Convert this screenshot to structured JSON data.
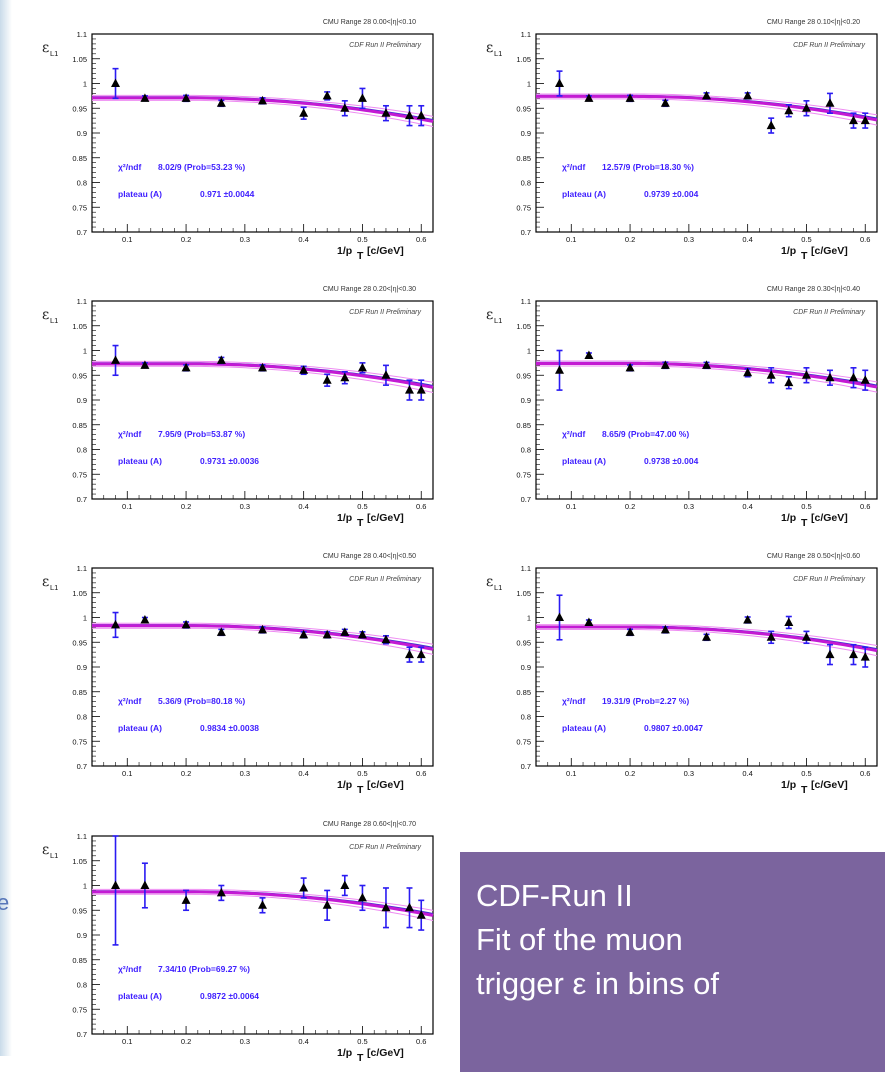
{
  "common": {
    "y_symbol": "ε",
    "y_sub": "L1",
    "preliminary": "CDF Run II Preliminary",
    "xlabel_main": "1/p",
    "xlabel_sub": "T",
    "xlabel_unit": "[c/GeV]",
    "y_ticks": [
      "0.7",
      "0.75",
      "0.8",
      "0.85",
      "0.9",
      "0.95",
      "1",
      "1.05",
      "1.1"
    ],
    "x_ticks": [
      "0.1",
      "0.2",
      "0.3",
      "0.4",
      "0.5",
      "0.6"
    ],
    "plateau_label": "plateau (A)",
    "chi_label": "χ²/ndf",
    "colors": {
      "fit": "#c31ad3",
      "fit_band": "#3b2fd1",
      "error": "#2a1bf2",
      "text": "#3d1dff",
      "marker": "#000000"
    }
  },
  "chart_data": [
    {
      "type": "scatter",
      "title": "CMU Range 28   0.00<|η|<0.10",
      "chi2": "8.02/9 (Prob=53.23 %)",
      "plateau": "0.971 ±0.0044",
      "xlim": [
        0.04,
        0.62
      ],
      "ylim": [
        0.7,
        1.1
      ],
      "x": [
        0.08,
        0.13,
        0.2,
        0.26,
        0.33,
        0.4,
        0.44,
        0.47,
        0.5,
        0.54,
        0.58,
        0.6
      ],
      "y": [
        1.0,
        0.97,
        0.97,
        0.96,
        0.965,
        0.94,
        0.975,
        0.95,
        0.97,
        0.94,
        0.935,
        0.935
      ],
      "err": [
        0.03,
        0.005,
        0.006,
        0.006,
        0.006,
        0.012,
        0.008,
        0.015,
        0.02,
        0.015,
        0.02,
        0.02
      ],
      "fit": {
        "A": 0.971
      }
    },
    {
      "type": "scatter",
      "title": "CMU Range 28   0.10<|η|<0.20",
      "chi2": "12.57/9 (Prob=18.30 %)",
      "plateau": "0.9739 ±0.004",
      "xlim": [
        0.04,
        0.62
      ],
      "ylim": [
        0.7,
        1.1
      ],
      "x": [
        0.08,
        0.13,
        0.2,
        0.26,
        0.33,
        0.4,
        0.44,
        0.47,
        0.5,
        0.54,
        0.58,
        0.6
      ],
      "y": [
        1.0,
        0.97,
        0.97,
        0.96,
        0.975,
        0.975,
        0.915,
        0.945,
        0.95,
        0.96,
        0.925,
        0.925
      ],
      "err": [
        0.025,
        0.005,
        0.006,
        0.006,
        0.006,
        0.006,
        0.015,
        0.012,
        0.015,
        0.02,
        0.015,
        0.015
      ],
      "fit": {
        "A": 0.9739
      }
    },
    {
      "type": "scatter",
      "title": "CMU Range 28   0.20<|η|<0.30",
      "chi2": "7.95/9 (Prob=53.87 %)",
      "plateau": "0.9731 ±0.0036",
      "xlim": [
        0.04,
        0.62
      ],
      "ylim": [
        0.7,
        1.1
      ],
      "x": [
        0.08,
        0.13,
        0.2,
        0.26,
        0.33,
        0.4,
        0.44,
        0.47,
        0.5,
        0.54,
        0.58,
        0.6
      ],
      "y": [
        0.98,
        0.97,
        0.965,
        0.98,
        0.965,
        0.96,
        0.94,
        0.945,
        0.965,
        0.95,
        0.92,
        0.92
      ],
      "err": [
        0.03,
        0.005,
        0.006,
        0.006,
        0.006,
        0.008,
        0.012,
        0.012,
        0.01,
        0.02,
        0.02,
        0.02
      ],
      "fit": {
        "A": 0.9731
      }
    },
    {
      "type": "scatter",
      "title": "CMU Range 28   0.30<|η|<0.40",
      "chi2": "8.65/9 (Prob=47.00 %)",
      "plateau": "0.9738 ±0.004",
      "xlim": [
        0.04,
        0.62
      ],
      "ylim": [
        0.7,
        1.1
      ],
      "x": [
        0.08,
        0.13,
        0.2,
        0.26,
        0.33,
        0.4,
        0.44,
        0.47,
        0.5,
        0.54,
        0.58,
        0.6
      ],
      "y": [
        0.96,
        0.99,
        0.965,
        0.97,
        0.97,
        0.955,
        0.95,
        0.935,
        0.95,
        0.945,
        0.945,
        0.94
      ],
      "err": [
        0.04,
        0.005,
        0.006,
        0.006,
        0.006,
        0.008,
        0.015,
        0.012,
        0.015,
        0.015,
        0.02,
        0.02
      ],
      "fit": {
        "A": 0.9738
      }
    },
    {
      "type": "scatter",
      "title": "CMU Range 28   0.40<|η|<0.50",
      "chi2": "5.36/9 (Prob=80.18 %)",
      "plateau": "0.9834 ±0.0038",
      "xlim": [
        0.04,
        0.62
      ],
      "ylim": [
        0.7,
        1.1
      ],
      "x": [
        0.08,
        0.13,
        0.2,
        0.26,
        0.33,
        0.4,
        0.44,
        0.47,
        0.5,
        0.54,
        0.58,
        0.6
      ],
      "y": [
        0.985,
        0.995,
        0.985,
        0.97,
        0.975,
        0.965,
        0.965,
        0.97,
        0.965,
        0.955,
        0.925,
        0.925
      ],
      "err": [
        0.025,
        0.005,
        0.006,
        0.006,
        0.006,
        0.006,
        0.006,
        0.006,
        0.006,
        0.008,
        0.015,
        0.015
      ],
      "fit": {
        "A": 0.9834
      }
    },
    {
      "type": "scatter",
      "title": "CMU Range 28   0.50<|η|<0.60",
      "chi2": "19.31/9 (Prob=2.27 %)",
      "plateau": "0.9807 ±0.0047",
      "xlim": [
        0.04,
        0.62
      ],
      "ylim": [
        0.7,
        1.1
      ],
      "x": [
        0.08,
        0.13,
        0.2,
        0.26,
        0.33,
        0.4,
        0.44,
        0.47,
        0.5,
        0.54,
        0.58,
        0.6
      ],
      "y": [
        1.0,
        0.99,
        0.97,
        0.975,
        0.96,
        0.995,
        0.96,
        0.99,
        0.96,
        0.925,
        0.925,
        0.92
      ],
      "err": [
        0.045,
        0.005,
        0.006,
        0.006,
        0.006,
        0.006,
        0.012,
        0.012,
        0.012,
        0.02,
        0.02,
        0.02
      ],
      "fit": {
        "A": 0.9807
      }
    },
    {
      "type": "scatter",
      "title": "CMU Range 28   0.60<|η|<0.70",
      "chi2": "7.34/10 (Prob=69.27 %)",
      "plateau": "0.9872 ±0.0064",
      "xlim": [
        0.04,
        0.62
      ],
      "ylim": [
        0.7,
        1.1
      ],
      "x": [
        0.08,
        0.13,
        0.2,
        0.26,
        0.33,
        0.4,
        0.44,
        0.47,
        0.5,
        0.54,
        0.58,
        0.6
      ],
      "y": [
        1.0,
        1.0,
        0.97,
        0.985,
        0.96,
        0.995,
        0.96,
        1.0,
        0.975,
        0.955,
        0.955,
        0.94
      ],
      "err": [
        0.12,
        0.045,
        0.02,
        0.015,
        0.015,
        0.02,
        0.03,
        0.02,
        0.025,
        0.04,
        0.04,
        0.03
      ],
      "fit": {
        "A": 0.9872
      }
    }
  ],
  "note": {
    "line1": "CDF-Run II",
    "line2": "Fit of the muon",
    "line3": "trigger ε in bins of"
  },
  "edge_fragment": "e"
}
